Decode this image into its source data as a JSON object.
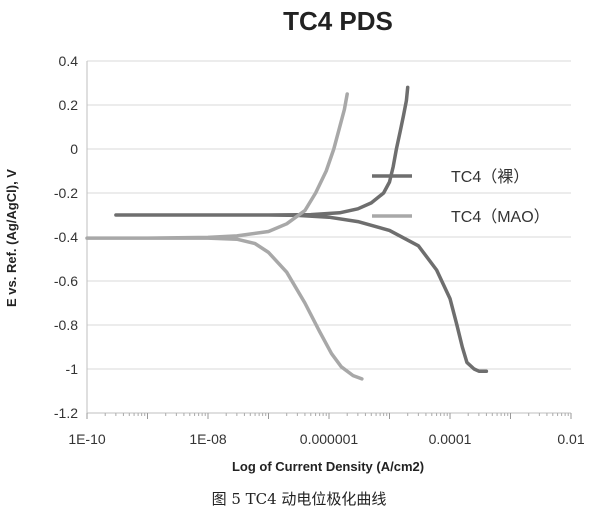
{
  "chart_data": {
    "type": "line",
    "title": "TC4  PDS",
    "xlabel": "Log of Current Density (A/cm2)",
    "ylabel": "E vs. Ref. (Ag/AgCl), V",
    "x_scale": "log",
    "xlim": [
      1e-10,
      0.01
    ],
    "ylim": [
      -1.2,
      0.4
    ],
    "x_ticks": [
      1e-10,
      1e-08,
      1e-06,
      0.0001,
      0.01
    ],
    "x_tick_labels": [
      "1E-10",
      "1E-08",
      "0.000001",
      "0.0001",
      "0.01"
    ],
    "y_ticks": [
      0.4,
      0.2,
      0,
      -0.2,
      -0.4,
      -0.6,
      -0.8,
      -1,
      -1.2
    ],
    "y_tick_labels": [
      "0.4",
      "0.2",
      "0",
      "-0.2",
      "-0.4",
      "-0.6",
      "-0.8",
      "-1",
      "-1.2"
    ],
    "grid": "horizontal",
    "legend_position": "right",
    "series": [
      {
        "name": "TC4（裸）",
        "color": "#6e6e6e",
        "points": [
          [
            2e-05,
            0.28
          ],
          [
            1.9e-05,
            0.22
          ],
          [
            1.7e-05,
            0.15
          ],
          [
            1.5e-05,
            0.08
          ],
          [
            1.3e-05,
            0.0
          ],
          [
            1.15e-05,
            -0.08
          ],
          [
            1e-05,
            -0.15
          ],
          [
            8e-06,
            -0.2
          ],
          [
            5e-06,
            -0.245
          ],
          [
            3e-06,
            -0.272
          ],
          [
            1.5e-06,
            -0.29
          ],
          [
            5e-07,
            -0.298
          ],
          [
            1e-07,
            -0.3
          ],
          [
            1e-08,
            -0.3
          ],
          [
            1e-09,
            -0.3
          ],
          [
            3e-10,
            -0.3
          ],
          [
            1e-09,
            -0.3
          ],
          [
            1e-08,
            -0.3
          ],
          [
            1e-07,
            -0.3
          ],
          [
            3e-07,
            -0.302
          ],
          [
            1e-06,
            -0.31
          ],
          [
            3e-06,
            -0.33
          ],
          [
            1e-05,
            -0.37
          ],
          [
            3e-05,
            -0.44
          ],
          [
            6e-05,
            -0.55
          ],
          [
            0.0001,
            -0.68
          ],
          [
            0.00013,
            -0.8
          ],
          [
            0.00016,
            -0.9
          ],
          [
            0.00019,
            -0.97
          ],
          [
            0.00025,
            -1.0
          ],
          [
            0.0003,
            -1.01
          ],
          [
            0.0004,
            -1.01
          ]
        ]
      },
      {
        "name": "TC4（MAO）",
        "color": "#a8a8a8",
        "points": [
          [
            2e-06,
            0.25
          ],
          [
            1.8e-06,
            0.18
          ],
          [
            1.5e-06,
            0.1
          ],
          [
            1.2e-06,
            0.0
          ],
          [
            9e-07,
            -0.1
          ],
          [
            6e-07,
            -0.2
          ],
          [
            4e-07,
            -0.28
          ],
          [
            2e-07,
            -0.34
          ],
          [
            1e-07,
            -0.375
          ],
          [
            3e-08,
            -0.395
          ],
          [
            1e-08,
            -0.402
          ],
          [
            1e-09,
            -0.405
          ],
          [
            1e-10,
            -0.405
          ],
          [
            1e-09,
            -0.405
          ],
          [
            1e-08,
            -0.405
          ],
          [
            3e-08,
            -0.41
          ],
          [
            6e-08,
            -0.43
          ],
          [
            1e-07,
            -0.47
          ],
          [
            2e-07,
            -0.56
          ],
          [
            4e-07,
            -0.7
          ],
          [
            7e-07,
            -0.83
          ],
          [
            1.1e-06,
            -0.93
          ],
          [
            1.6e-06,
            -0.99
          ],
          [
            2.5e-06,
            -1.03
          ],
          [
            3.5e-06,
            -1.045
          ]
        ]
      }
    ]
  },
  "caption": "图 5   TC4 动电位极化曲线"
}
